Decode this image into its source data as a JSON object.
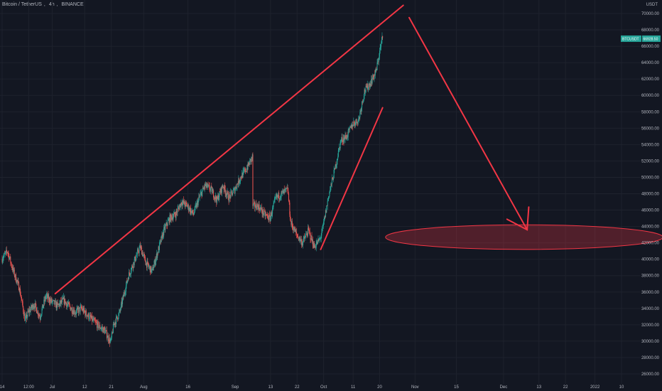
{
  "header": {
    "symbol_title": "Bitcoin / TetherUS",
    "interval": "4h",
    "exchange": "BINANCE"
  },
  "price_axis": {
    "currency": "USDT"
  },
  "ticker_badges": {
    "symbol": "BTCUSDT",
    "price": "66928.50"
  },
  "colors": {
    "background": "#131722",
    "grid": "#1e222d",
    "up_candle": "#26a69a",
    "down_candle": "#ef5350",
    "drawing": "#f23645",
    "badge": "#26a69a"
  },
  "chart_data": {
    "type": "candlestick",
    "ylabel": "USDT",
    "ylim": [
      25500,
      71500
    ],
    "y_ticks": [
      "26000.00",
      "28000.00",
      "30000.00",
      "32000.00",
      "34000.00",
      "36000.00",
      "38000.00",
      "40000.00",
      "42000.00",
      "44000.00",
      "46000.00",
      "48000.00",
      "50000.00",
      "52000.00",
      "54000.00",
      "56000.00",
      "58000.00",
      "60000.00",
      "62000.00",
      "64000.00",
      "66000.00",
      "68000.00",
      "70000.00"
    ],
    "x_ticks": [
      {
        "label": "14",
        "date": "2021-06-14"
      },
      {
        "label": "12:00",
        "date": "2021-06-23"
      },
      {
        "label": "Jul",
        "date": "2021-07-01"
      },
      {
        "label": "12",
        "date": "2021-07-12"
      },
      {
        "label": "21",
        "date": "2021-07-21"
      },
      {
        "label": "Aug",
        "date": "2021-08-01"
      },
      {
        "label": "16",
        "date": "2021-08-16"
      },
      {
        "label": "Sep",
        "date": "2021-09-01"
      },
      {
        "label": "13",
        "date": "2021-09-13"
      },
      {
        "label": "22",
        "date": "2021-09-22"
      },
      {
        "label": "Oct",
        "date": "2021-10-01"
      },
      {
        "label": "11",
        "date": "2021-10-11"
      },
      {
        "label": "20",
        "date": "2021-10-20"
      },
      {
        "label": "Nov",
        "date": "2021-11-01"
      },
      {
        "label": "15",
        "date": "2021-11-15"
      },
      {
        "label": "Dec",
        "date": "2021-12-01"
      },
      {
        "label": "13",
        "date": "2021-12-13"
      },
      {
        "label": "22",
        "date": "2021-12-22"
      },
      {
        "label": "2022",
        "date": "2022-01-01"
      },
      {
        "label": "10",
        "date": "2022-01-10"
      }
    ],
    "price_path": [
      [
        "2021-06-14",
        40000
      ],
      [
        "2021-06-16",
        41000
      ],
      [
        "2021-06-18",
        38500
      ],
      [
        "2021-06-20",
        36500
      ],
      [
        "2021-06-22",
        32500
      ],
      [
        "2021-06-23",
        33500
      ],
      [
        "2021-06-25",
        34500
      ],
      [
        "2021-06-27",
        33000
      ],
      [
        "2021-06-29",
        35500
      ],
      [
        "2021-07-01",
        34800
      ],
      [
        "2021-07-03",
        34300
      ],
      [
        "2021-07-05",
        35000
      ],
      [
        "2021-07-07",
        34200
      ],
      [
        "2021-07-09",
        33500
      ],
      [
        "2021-07-11",
        34000
      ],
      [
        "2021-07-13",
        33200
      ],
      [
        "2021-07-15",
        32500
      ],
      [
        "2021-07-17",
        31800
      ],
      [
        "2021-07-19",
        31300
      ],
      [
        "2021-07-20",
        30500
      ],
      [
        "2021-07-21",
        29900
      ],
      [
        "2021-07-22",
        32000
      ],
      [
        "2021-07-24",
        33500
      ],
      [
        "2021-07-26",
        36500
      ],
      [
        "2021-07-27",
        38000
      ],
      [
        "2021-07-29",
        39800
      ],
      [
        "2021-07-31",
        41500
      ],
      [
        "2021-08-02",
        39500
      ],
      [
        "2021-08-04",
        38500
      ],
      [
        "2021-08-06",
        41000
      ],
      [
        "2021-08-08",
        43500
      ],
      [
        "2021-08-10",
        45000
      ],
      [
        "2021-08-12",
        45500
      ],
      [
        "2021-08-14",
        47000
      ],
      [
        "2021-08-16",
        46500
      ],
      [
        "2021-08-18",
        45500
      ],
      [
        "2021-08-20",
        47500
      ],
      [
        "2021-08-22",
        49000
      ],
      [
        "2021-08-24",
        48500
      ],
      [
        "2021-08-26",
        47200
      ],
      [
        "2021-08-28",
        49000
      ],
      [
        "2021-08-30",
        47500
      ],
      [
        "2021-09-01",
        48500
      ],
      [
        "2021-09-03",
        50000
      ],
      [
        "2021-09-05",
        51000
      ],
      [
        "2021-09-07",
        52500
      ],
      [
        "2021-09-07",
        46500
      ],
      [
        "2021-09-09",
        46500
      ],
      [
        "2021-09-11",
        45500
      ],
      [
        "2021-09-13",
        45000
      ],
      [
        "2021-09-15",
        47500
      ],
      [
        "2021-09-17",
        48000
      ],
      [
        "2021-09-19",
        48500
      ],
      [
        "2021-09-20",
        44500
      ],
      [
        "2021-09-22",
        43000
      ],
      [
        "2021-09-24",
        42000
      ],
      [
        "2021-09-26",
        43500
      ],
      [
        "2021-09-28",
        41500
      ],
      [
        "2021-09-30",
        42500
      ],
      [
        "2021-10-01",
        44000
      ],
      [
        "2021-10-03",
        48000
      ],
      [
        "2021-10-05",
        51000
      ],
      [
        "2021-10-07",
        54500
      ],
      [
        "2021-10-09",
        55000
      ],
      [
        "2021-10-11",
        56500
      ],
      [
        "2021-10-13",
        57000
      ],
      [
        "2021-10-15",
        60500
      ],
      [
        "2021-10-17",
        61500
      ],
      [
        "2021-10-19",
        63000
      ],
      [
        "2021-10-20",
        65000
      ],
      [
        "2021-10-21",
        66928.5
      ]
    ],
    "drawings": [
      {
        "type": "line",
        "points": [
          [
            "2021-07-02",
            35800
          ],
          [
            "2021-10-28",
            71000
          ]
        ]
      },
      {
        "type": "line",
        "points": [
          [
            "2021-10-21",
            58500
          ],
          [
            "2021-09-30",
            41200
          ]
        ]
      },
      {
        "type": "arrow",
        "points": [
          [
            "2021-10-30",
            69500
          ],
          [
            "2021-12-09",
            43600
          ]
        ]
      },
      {
        "type": "ellipse",
        "center": [
          "2021-12-08",
          42700
        ],
        "rx_days": 47,
        "ry_price": 1500
      }
    ]
  }
}
